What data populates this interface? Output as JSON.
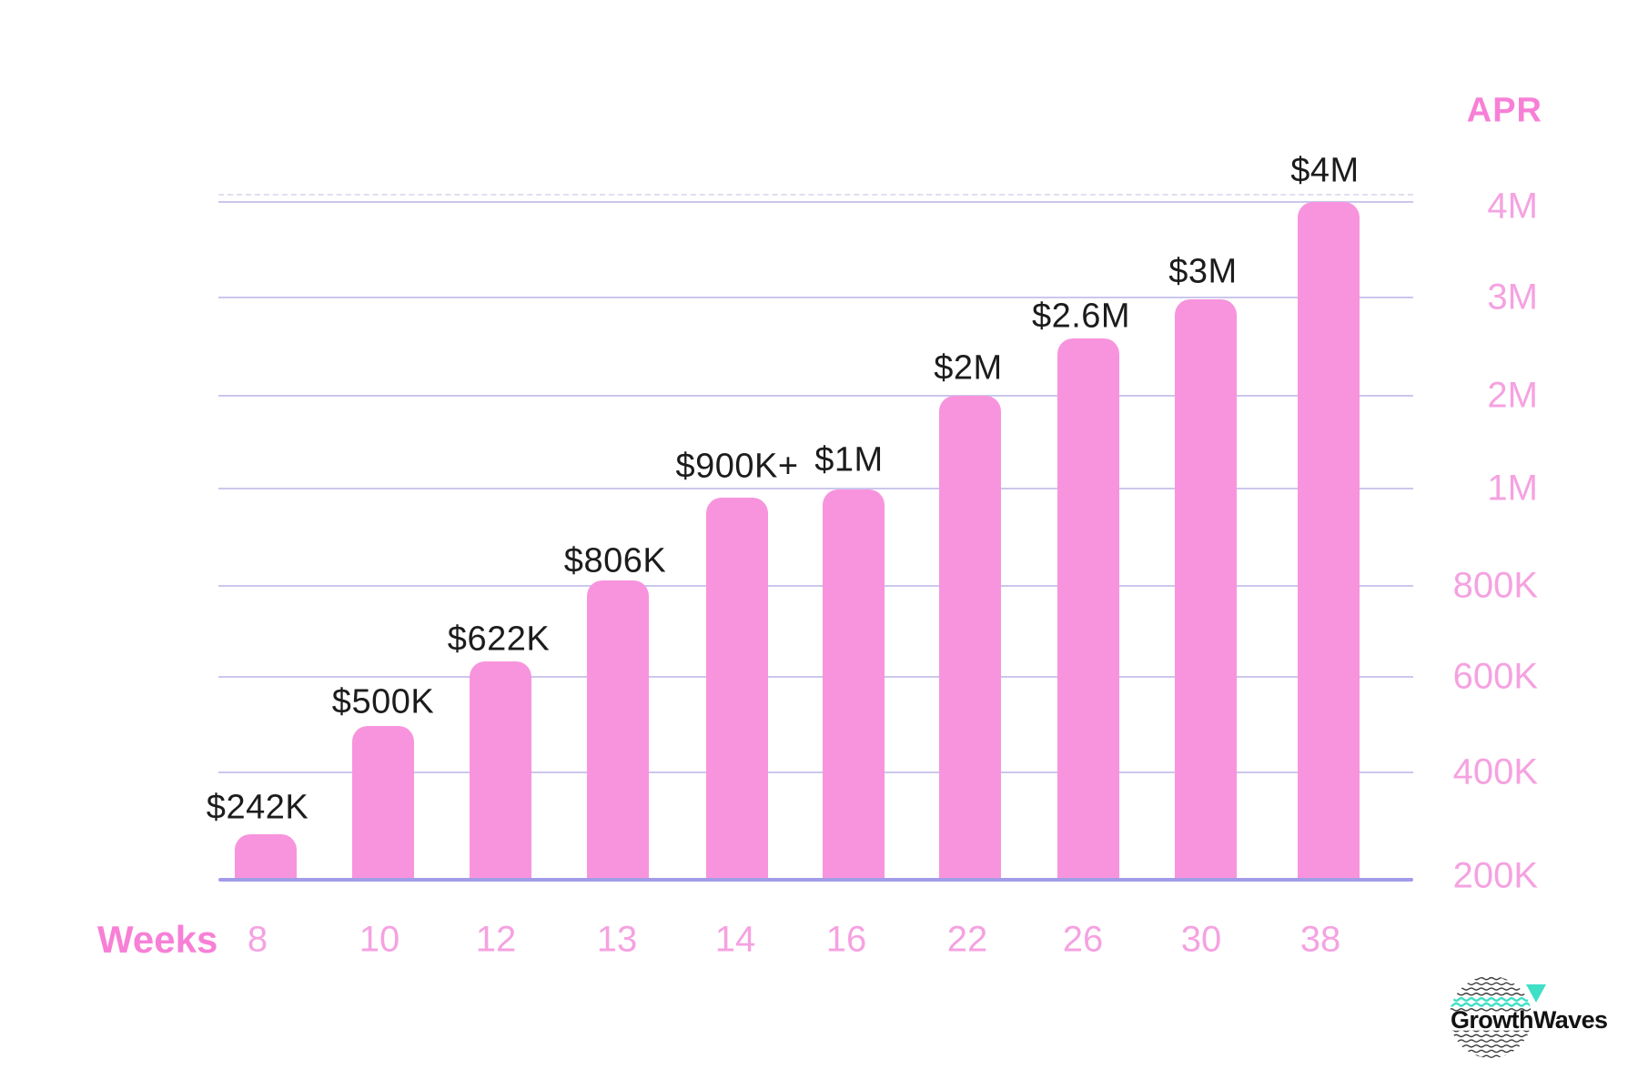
{
  "chart_data": {
    "type": "bar",
    "title": "",
    "x_axis_title": "Weeks",
    "y_axis_title": "APR",
    "categories": [
      "8",
      "10",
      "12",
      "13",
      "14",
      "16",
      "22",
      "26",
      "30",
      "38"
    ],
    "values": [
      242000,
      500000,
      622000,
      806000,
      900000,
      1000000,
      2000000,
      2600000,
      3000000,
      4000000
    ],
    "bar_value_labels": [
      "$242K",
      "$500K",
      "$622K",
      "$806K",
      "$900K+",
      "$1M",
      "$2M",
      "$2.6M",
      "$3M",
      "$4M"
    ],
    "y_tick_labels": [
      "4M",
      "3M",
      "2M",
      "1M",
      "800K",
      "600K",
      "400K",
      "200K"
    ],
    "y_axis_scale_note": "non-linear scale: 200K steps from 200K to 1M, then 1M steps to 4M",
    "y_range": [
      200000,
      4000000
    ],
    "grid": true,
    "legend": false,
    "bar_color": "#F894DD",
    "grid_color": "#CBC7EC",
    "grid_dashed_color": "#E1DEF0",
    "axis_line_color": "#A29BE8",
    "tick_label_color": "#F5A2E1",
    "axis_title_color": "#F780D6",
    "value_label_color": "#1C1C1C"
  },
  "logo": {
    "text": "GrowthWaves",
    "text_color": "#121212",
    "wave_color": "#3C3C3C",
    "accent_color": "#3FE0C5"
  }
}
